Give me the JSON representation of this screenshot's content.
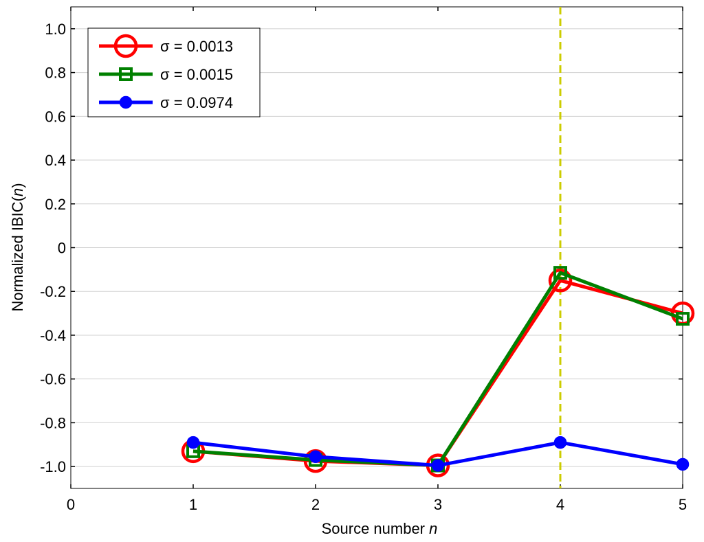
{
  "chart_data": {
    "type": "line",
    "xlabel": "Source number",
    "xlabel_var": "n",
    "ylabel": "Normalized IBIC(",
    "ylabel_var": "n",
    "ylabel_close": ")",
    "xlim": [
      0,
      5
    ],
    "ylim": [
      -1.1,
      1.1
    ],
    "x_ticks": [
      0,
      1,
      2,
      3,
      4,
      5
    ],
    "x_tick_labels": [
      "0",
      "1",
      "2",
      "3",
      "4",
      "5"
    ],
    "y_ticks": [
      1.0,
      0.8,
      0.6,
      0.4,
      0.2,
      0,
      -0.2,
      -0.4,
      -0.6,
      -0.8,
      -1.0
    ],
    "y_tick_labels": [
      "1.0",
      "0.8",
      "0.6",
      "0.4",
      "0.2",
      "0",
      "-0.2",
      "-0.4",
      "-0.6",
      "-0.8",
      "-1.0"
    ],
    "grid": true,
    "legend_position": "top-left",
    "x": [
      1,
      2,
      3,
      4,
      5
    ],
    "series": [
      {
        "name": "σ = 0.0013",
        "color": "#ff0000",
        "marker": "open-circle",
        "values": [
          -0.93,
          -0.975,
          -0.995,
          -0.15,
          -0.3
        ]
      },
      {
        "name": "σ = 0.0015",
        "color": "#008000",
        "marker": "open-square",
        "values": [
          -0.93,
          -0.97,
          -0.995,
          -0.115,
          -0.325
        ]
      },
      {
        "name": "σ = 0.0974",
        "color": "#0000ff",
        "marker": "filled-circle",
        "values": [
          -0.89,
          -0.955,
          -0.995,
          -0.89,
          -0.99
        ]
      }
    ],
    "reference_line": {
      "x": 4,
      "color": "#cccc00",
      "style": "dashed"
    }
  }
}
